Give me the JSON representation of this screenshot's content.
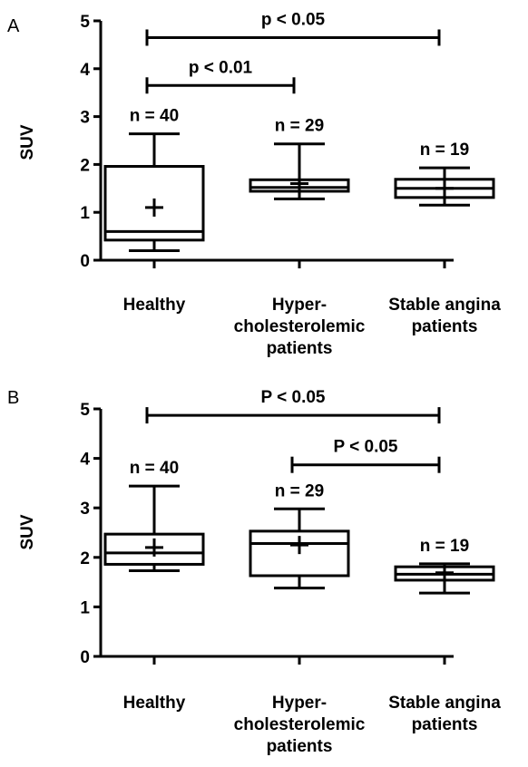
{
  "chart_data": [
    {
      "panel": "A",
      "type": "box",
      "ylabel": "SUV",
      "ylim": [
        0,
        5
      ],
      "yticks": [
        "0",
        "1",
        "2",
        "3",
        "4",
        "5"
      ],
      "categories": [
        {
          "lines": [
            "Healthy"
          ],
          "n_label": "n = 40",
          "min": 0.2,
          "q1": 0.42,
          "median": 0.6,
          "q3": 1.96,
          "max": 2.64,
          "mean": 1.1
        },
        {
          "lines": [
            "Hyper-",
            "cholesterolemic",
            "patients"
          ],
          "n_label": "n = 29",
          "min": 1.28,
          "q1": 1.44,
          "median": 1.52,
          "q3": 1.68,
          "max": 2.43,
          "mean": 1.6
        },
        {
          "lines": [
            "Stable angina",
            "patients"
          ],
          "n_label": "n = 19",
          "min": 1.15,
          "q1": 1.31,
          "median": 1.5,
          "q3": 1.69,
          "max": 1.93,
          "mean": 1.5
        }
      ],
      "comparisons": [
        {
          "from": 0,
          "to": 2,
          "y": 4.65,
          "label": "p < 0.05"
        },
        {
          "from": 0,
          "to": 1,
          "y": 3.65,
          "label": "p < 0.01"
        }
      ]
    },
    {
      "panel": "B",
      "type": "box",
      "ylabel": "SUV",
      "ylim": [
        0,
        5
      ],
      "yticks": [
        "0",
        "1",
        "2",
        "3",
        "4",
        "5"
      ],
      "categories": [
        {
          "lines": [
            "Healthy"
          ],
          "n_label": "n = 40",
          "min": 1.73,
          "q1": 1.86,
          "median": 2.09,
          "q3": 2.47,
          "max": 3.44,
          "mean": 2.2
        },
        {
          "lines": [
            "Hyper-",
            "cholesterolemic",
            "patients"
          ],
          "n_label": "n = 29",
          "min": 1.38,
          "q1": 1.63,
          "median": 2.28,
          "q3": 2.53,
          "max": 2.98,
          "mean": 2.25
        },
        {
          "lines": [
            "Stable angina",
            "patients"
          ],
          "n_label": "n = 19",
          "min": 1.28,
          "q1": 1.54,
          "median": 1.66,
          "q3": 1.81,
          "max": 1.87,
          "mean": 1.69
        }
      ],
      "comparisons": [
        {
          "from": 0,
          "to": 2,
          "y": 4.87,
          "label": "P < 0.05"
        },
        {
          "from": 1,
          "to": 2,
          "y": 3.87,
          "label": "P < 0.05"
        }
      ]
    }
  ]
}
